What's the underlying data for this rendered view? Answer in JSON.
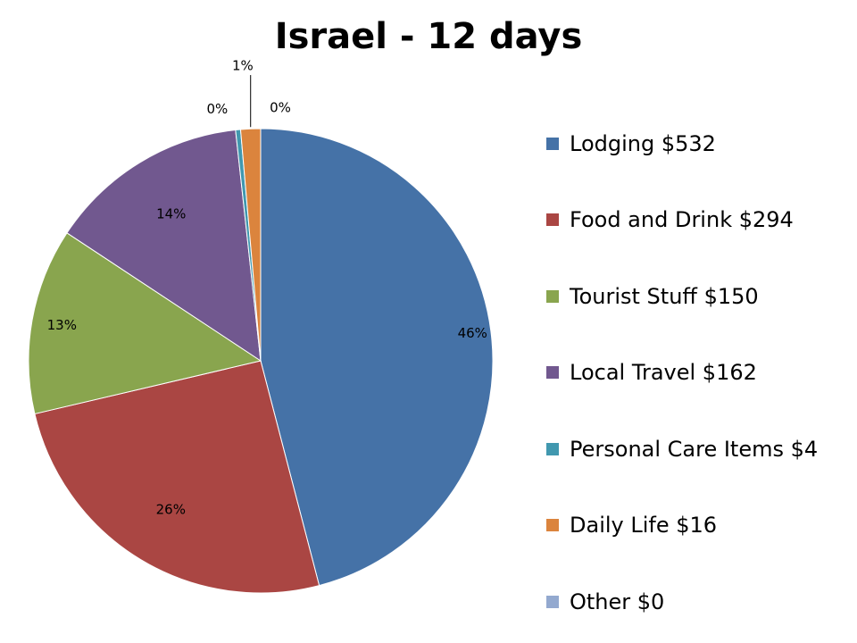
{
  "chart_data": {
    "type": "pie",
    "title": "Israel - 12 days",
    "slices": [
      {
        "name": "Lodging $532",
        "value": 532,
        "label": "46%",
        "color": "#4572A7"
      },
      {
        "name": "Food and Drink $294",
        "value": 294,
        "label": "26%",
        "color": "#AA4643"
      },
      {
        "name": "Tourist Stuff $150",
        "value": 150,
        "label": "13%",
        "color": "#89A54E"
      },
      {
        "name": "Local Travel $162",
        "value": 162,
        "label": "14%",
        "color": "#71588F"
      },
      {
        "name": "Personal Care Items $4",
        "value": 4,
        "label": "0%",
        "color": "#4198AF"
      },
      {
        "name": "Daily Life $16",
        "value": 16,
        "label": "1%",
        "color": "#DB843D"
      },
      {
        "name": "Other $0",
        "value": 0,
        "label": "0%",
        "color": "#93A9CF"
      }
    ],
    "legend_position": "right"
  }
}
